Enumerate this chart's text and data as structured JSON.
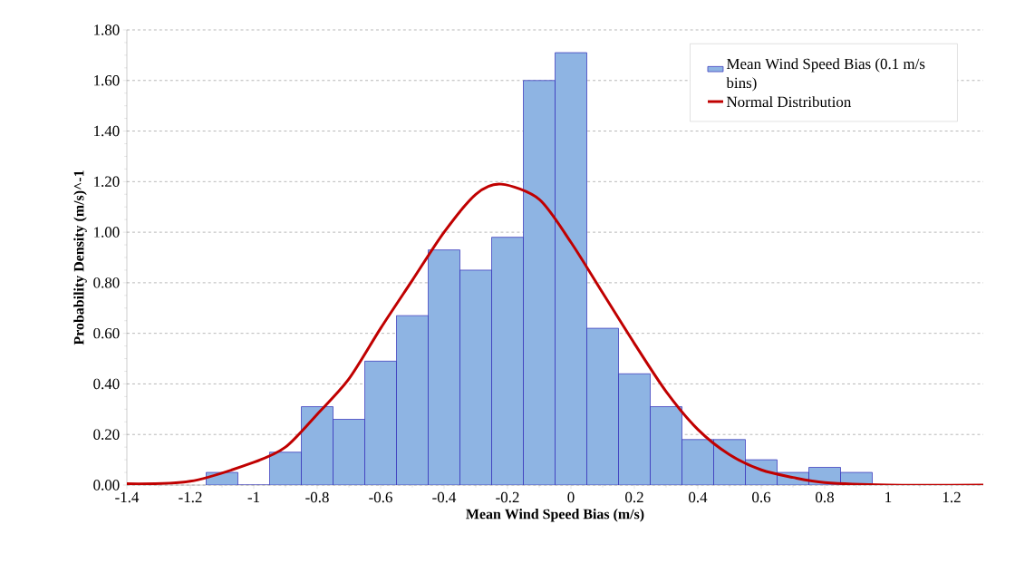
{
  "chart_data": {
    "type": "histogram",
    "xlabel": "Mean Wind Speed Bias (m/s)",
    "ylabel": "Probability Density (m/s)^-1",
    "series": [
      {
        "name": "Mean Wind Speed Bias (0.1 m/s bins)",
        "color": "#8eb4e3",
        "bins": [
          -1.15,
          -1.05,
          -0.95,
          -0.85,
          -0.75,
          -0.65,
          -0.55,
          -0.45,
          -0.35,
          -0.25,
          -0.15,
          -0.05,
          0.05,
          0.15,
          0.25,
          0.35,
          0.45,
          0.55,
          0.65,
          0.75,
          0.85,
          0.95
        ],
        "values": [
          0.05,
          0,
          0.13,
          0.31,
          0.26,
          0.49,
          0.67,
          0.93,
          0.85,
          0.98,
          1.6,
          1.71,
          0.62,
          0.44,
          0.31,
          0.18,
          0.18,
          0.1,
          0.05,
          0.07,
          0.05
        ]
      },
      {
        "type": "line",
        "name": "Normal Distribution",
        "color": "#c00000",
        "x": [
          -1.4,
          -1.2,
          -1.0,
          -0.9,
          -0.8,
          -0.7,
          -0.6,
          -0.5,
          -0.4,
          -0.3,
          -0.22,
          -0.1,
          0,
          0.1,
          0.2,
          0.3,
          0.4,
          0.5,
          0.6,
          0.7,
          0.8,
          1.0,
          1.3
        ],
        "values": [
          0.005,
          0.015,
          0.09,
          0.15,
          0.28,
          0.42,
          0.62,
          0.81,
          1.0,
          1.15,
          1.19,
          1.13,
          0.96,
          0.76,
          0.56,
          0.37,
          0.22,
          0.12,
          0.06,
          0.03,
          0.01,
          0,
          0
        ]
      }
    ],
    "xlim": [
      -1.4,
      1.3
    ],
    "xticks": [
      -1.4,
      -1.2,
      -1,
      -0.8,
      -0.6,
      -0.4,
      -0.2,
      0,
      0.2,
      0.4,
      0.6,
      0.8,
      1,
      1.2
    ],
    "ylim": [
      0,
      1.8
    ],
    "yticks": [
      {
        "value": 0,
        "label": "0.00"
      },
      {
        "value": 0.2,
        "label": "0.20"
      },
      {
        "value": 0.4,
        "label": "0.40"
      },
      {
        "value": 0.6,
        "label": "0.60"
      },
      {
        "value": 0.8,
        "label": "0.80"
      },
      {
        "value": 1.0,
        "label": "1.00"
      },
      {
        "value": 1.2,
        "label": "1.20"
      },
      {
        "value": 1.4,
        "label": "1.40"
      },
      {
        "value": 1.6,
        "label": "1.60"
      },
      {
        "value": 1.8,
        "label": "1.80"
      }
    ],
    "grid": "y",
    "legend": "top right",
    "marker": "none",
    "line_style": "solid"
  }
}
